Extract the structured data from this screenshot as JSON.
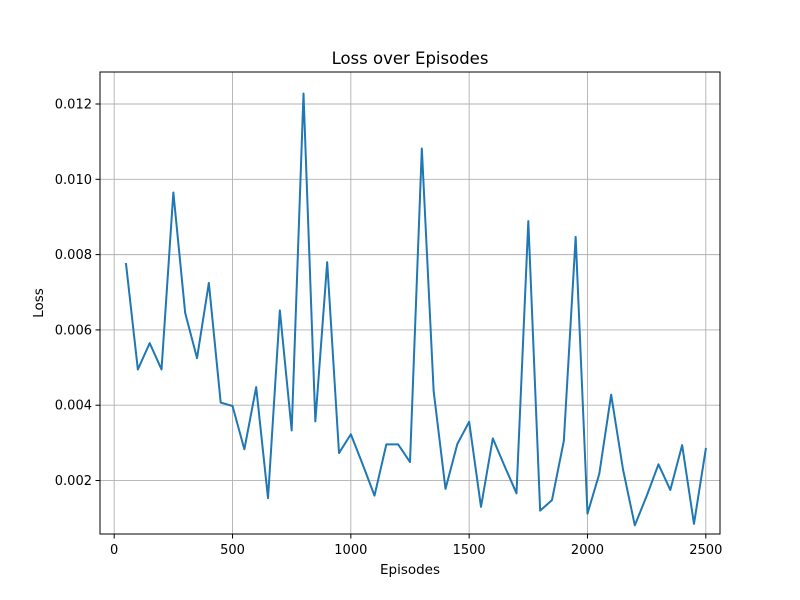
{
  "chart_data": {
    "type": "line",
    "title": "Loss over Episodes",
    "xlabel": "Episodes",
    "ylabel": "Loss",
    "xlim": [
      -60,
      2560
    ],
    "ylim": [
      0.00058,
      0.01285
    ],
    "xticks": [
      0,
      500,
      1000,
      1500,
      2000,
      2500
    ],
    "xtick_labels": [
      "0",
      "500",
      "1000",
      "1500",
      "2000",
      "2500"
    ],
    "yticks": [
      0.002,
      0.004,
      0.006,
      0.008,
      0.01,
      0.012
    ],
    "ytick_labels": [
      "0.002",
      "0.004",
      "0.006",
      "0.008",
      "0.010",
      "0.012"
    ],
    "grid": true,
    "series": [
      {
        "color": "#1f77b4",
        "x": [
          50,
          100,
          150,
          200,
          250,
          300,
          350,
          400,
          450,
          500,
          550,
          600,
          650,
          700,
          750,
          800,
          850,
          900,
          950,
          1000,
          1050,
          1100,
          1150,
          1200,
          1250,
          1300,
          1350,
          1400,
          1450,
          1500,
          1550,
          1600,
          1650,
          1700,
          1750,
          1800,
          1850,
          1900,
          1950,
          2000,
          2050,
          2100,
          2150,
          2200,
          2250,
          2300,
          2350,
          2400,
          2450,
          2500
        ],
        "y": [
          0.00775,
          0.00495,
          0.00565,
          0.00495,
          0.00965,
          0.00645,
          0.00525,
          0.00725,
          0.00407,
          0.00398,
          0.00283,
          0.00448,
          0.00153,
          0.00652,
          0.00333,
          0.01228,
          0.00357,
          0.0078,
          0.00273,
          0.00323,
          0.00243,
          0.0016,
          0.00296,
          0.00296,
          0.00249,
          0.01082,
          0.00437,
          0.00178,
          0.00297,
          0.00356,
          0.0013,
          0.00312,
          0.00238,
          0.00166,
          0.00889,
          0.0012,
          0.00148,
          0.00305,
          0.00847,
          0.00112,
          0.00218,
          0.00428,
          0.0023,
          0.00081,
          0.00159,
          0.00243,
          0.00175,
          0.00294,
          0.00085,
          0.00284
        ]
      }
    ]
  }
}
